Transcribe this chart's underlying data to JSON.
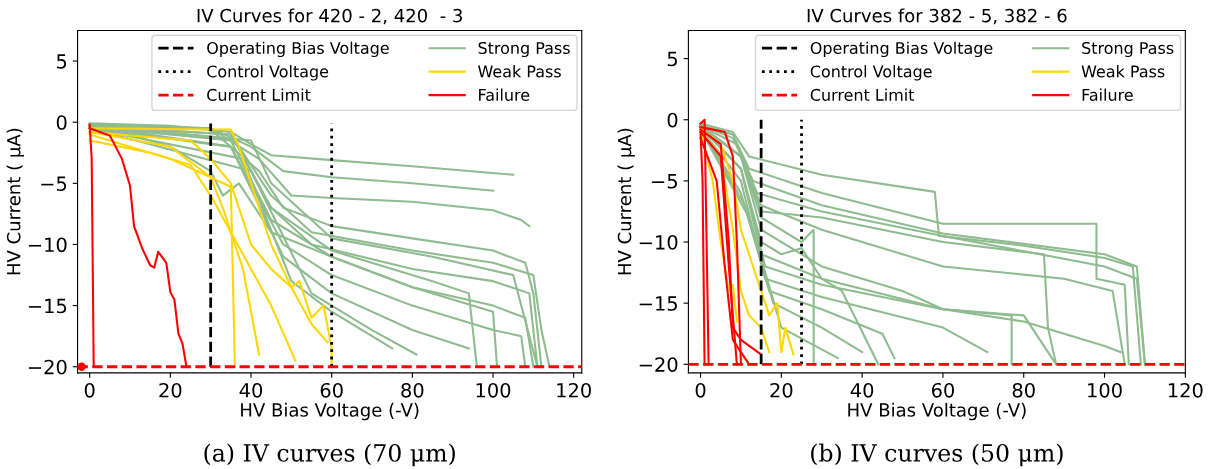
{
  "chart_data": [
    {
      "type": "line",
      "title": "IV Curves for 420 - 2, 420  - 3",
      "xlabel": "HV Bias Voltage (-V)",
      "ylabel": "HV Current ( μA)",
      "xlim": [
        -3,
        122
      ],
      "xticks": [
        0,
        20,
        40,
        60,
        80,
        100,
        120
      ],
      "ylim": [
        -20.5,
        7.5
      ],
      "yticks": [
        -20,
        -15,
        -10,
        -5,
        0,
        5
      ],
      "legend": "top right",
      "grid": false,
      "annotations": [
        "(a) IV curves (70 μm)"
      ],
      "ref_lines": [
        {
          "axis": "x",
          "value": 30,
          "label": "Operating Bias Voltage",
          "color": "#000000",
          "line_style": "dashed"
        },
        {
          "axis": "x",
          "value": 60,
          "label": "Control Voltage",
          "color": "#000000",
          "line_style": "dotted"
        },
        {
          "axis": "y",
          "value": -20,
          "label": "Current Limit",
          "color": "#ff0000",
          "line_style": "dashed"
        }
      ],
      "series": [
        {
          "name": "Strong Pass",
          "color": "#8fbc8f",
          "x": [
            0,
            20,
            35,
            40,
            45,
            60,
            80,
            105
          ],
          "values": [
            -0.1,
            -0.3,
            -0.8,
            -1.8,
            -2.7,
            -3.1,
            -3.6,
            -4.3
          ]
        },
        {
          "color": "#8fbc8f",
          "x": [
            0,
            30,
            40,
            48,
            60,
            80,
            100
          ],
          "values": [
            -0.2,
            -0.5,
            -2,
            -4,
            -4.5,
            -5,
            -5.6
          ]
        },
        {
          "color": "#8fbc8f",
          "x": [
            0,
            30,
            42,
            50,
            60,
            80,
            100,
            107,
            109
          ],
          "values": [
            -0.2,
            -0.5,
            -3,
            -6,
            -6.2,
            -6.5,
            -7.2,
            -8,
            -8.5
          ]
        },
        {
          "color": "#8fbc8f",
          "x": [
            0,
            30,
            42,
            48,
            60,
            80,
            100,
            108,
            110,
            112
          ],
          "values": [
            -0.2,
            -0.6,
            -4,
            -7,
            -8.5,
            -9.5,
            -10.5,
            -11.5,
            -14,
            -20
          ]
        },
        {
          "color": "#8fbc8f",
          "x": [
            0,
            35,
            45,
            55,
            80,
            100,
            110,
            112,
            114
          ],
          "values": [
            -0.3,
            -1,
            -6,
            -9,
            -10.5,
            -11.5,
            -12.5,
            -17,
            -20
          ]
        },
        {
          "color": "#8fbc8f",
          "x": [
            0,
            35,
            45,
            55,
            80,
            100,
            109,
            111
          ],
          "values": [
            -0.3,
            -1,
            -7,
            -10,
            -12,
            -13,
            -14,
            -20
          ]
        },
        {
          "color": "#8fbc8f",
          "x": [
            0,
            35,
            45,
            60,
            80,
            100,
            108,
            110
          ],
          "values": [
            -0.3,
            -1.5,
            -8,
            -11,
            -13.5,
            -15,
            -16,
            -20
          ]
        },
        {
          "color": "#8fbc8f",
          "x": [
            0,
            35,
            48,
            60,
            80,
            100,
            107,
            108
          ],
          "values": [
            -0.3,
            -2,
            -10,
            -12.5,
            -15,
            -17,
            -17.5,
            -20
          ]
        },
        {
          "color": "#8fbc8f",
          "x": [
            0,
            35,
            48,
            60,
            80,
            94
          ],
          "values": [
            -0.5,
            -2,
            -11,
            -14,
            -17,
            -18.5
          ]
        },
        {
          "color": "#8fbc8f",
          "x": [
            0,
            38,
            50,
            60,
            75
          ],
          "values": [
            -0.5,
            -3,
            -13,
            -15.5,
            -18.5
          ]
        },
        {
          "color": "#8fbc8f",
          "x": [
            0,
            40,
            55,
            70,
            81
          ],
          "values": [
            -0.5,
            -4,
            -14,
            -17,
            -19
          ]
        },
        {
          "color": "#8fbc8f",
          "x": [
            0,
            36,
            45,
            60,
            85,
            94,
            96
          ],
          "values": [
            -0.4,
            -1.5,
            -7,
            -10.5,
            -13,
            -14,
            -20
          ]
        },
        {
          "color": "#8fbc8f",
          "x": [
            0,
            10,
            20,
            30,
            33,
            37,
            45,
            60,
            80,
            100,
            101
          ],
          "values": [
            -0.3,
            -1,
            -2,
            -4,
            -6,
            -5,
            -9,
            -11,
            -13.5,
            -15.5,
            -20
          ]
        },
        {
          "color": "#8fbc8f",
          "x": [
            0,
            40,
            45,
            60,
            85,
            105,
            111
          ],
          "values": [
            -0.2,
            -1.5,
            -5,
            -9.5,
            -11,
            -12.5,
            -20
          ]
        },
        {
          "name": "Weak Pass",
          "color": "#ffd700",
          "x": [
            0,
            30,
            35,
            37,
            40,
            45,
            50,
            52,
            55,
            58,
            60,
            60
          ],
          "values": [
            -0.5,
            -0.6,
            -0.6,
            -2,
            -5,
            -10,
            -13.5,
            -13,
            -16,
            -15,
            -18.5,
            -20
          ]
        },
        {
          "color": "#ffd700",
          "x": [
            0,
            20,
            30,
            35,
            36
          ],
          "values": [
            -0.8,
            -2,
            -4.5,
            -5.3,
            -20
          ]
        },
        {
          "color": "#ffd700",
          "x": [
            0,
            10,
            20,
            30,
            33,
            38,
            42
          ],
          "values": [
            -1,
            -2,
            -3,
            -4.5,
            -7,
            -12,
            -19
          ]
        },
        {
          "color": "#ffd700",
          "x": [
            0,
            15,
            25,
            30,
            35,
            40,
            45,
            51
          ],
          "values": [
            -1.5,
            -2.5,
            -3.5,
            -6,
            -9,
            -12,
            -15,
            -19.5
          ]
        },
        {
          "color": "#ffd700",
          "x": [
            0,
            25,
            30,
            35,
            40,
            45,
            50,
            55,
            59
          ],
          "values": [
            -0.8,
            -1.5,
            -3,
            -5,
            -10,
            -12,
            -13.5,
            -16.5,
            -18
          ]
        },
        {
          "name": "Failure",
          "color": "#ff0000",
          "x": [
            0,
            5,
            8,
            10,
            11,
            13,
            15,
            16,
            17,
            19,
            20,
            21,
            22,
            23,
            24
          ],
          "values": [
            -0.5,
            -1.1,
            -3,
            -5.2,
            -8.5,
            -10.3,
            -11.7,
            -11.9,
            -10.6,
            -11.5,
            -13.9,
            -14.5,
            -17.3,
            -18.1,
            -20
          ]
        },
        {
          "color": "#ff0000",
          "x": [
            0,
            0.5,
            1
          ],
          "values": [
            -0.2,
            -3,
            -20
          ]
        },
        {
          "type": "scatter",
          "color": "#ff0000",
          "x": [
            -2
          ],
          "values": [
            -20
          ]
        }
      ]
    },
    {
      "type": "line",
      "title": "IV Curves for 382 - 5, 382 - 6",
      "xlabel": "HV Bias Voltage (-V)",
      "ylabel": "HV Current ( μA)",
      "xlim": [
        -3,
        120
      ],
      "xticks": [
        0,
        20,
        40,
        60,
        80,
        100,
        120
      ],
      "ylim": [
        -20.7,
        7.3
      ],
      "yticks": [
        -20,
        -15,
        -10,
        -5,
        0,
        5
      ],
      "legend": "top right",
      "grid": false,
      "annotations": [
        "(b) IV curves (50 μm)"
      ],
      "ref_lines": [
        {
          "axis": "x",
          "value": 15,
          "label": "Operating Bias Voltage",
          "color": "#000000",
          "line_style": "dashed"
        },
        {
          "axis": "x",
          "value": 25,
          "label": "Control Voltage",
          "color": "#000000",
          "line_style": "dotted"
        },
        {
          "axis": "y",
          "value": -20,
          "label": "Current Limit",
          "color": "#ff0000",
          "line_style": "dashed"
        }
      ],
      "series": [
        {
          "name": "Strong Pass",
          "color": "#8fbc8f",
          "x": [
            0,
            8,
            12,
            30,
            58,
            59,
            80,
            100,
            107,
            109
          ],
          "values": [
            -0.3,
            -1,
            -3,
            -4.5,
            -5.9,
            -9.5,
            -10.3,
            -11.3,
            -12,
            -20
          ]
        },
        {
          "color": "#8fbc8f",
          "x": [
            0,
            8,
            12,
            30,
            60,
            98,
            98,
            105,
            106
          ],
          "values": [
            -0.4,
            -1.2,
            -4,
            -6,
            -8.5,
            -8.5,
            -13,
            -13.5,
            -20
          ]
        },
        {
          "color": "#8fbc8f",
          "x": [
            0,
            8,
            13,
            30,
            60,
            100,
            108,
            110
          ],
          "values": [
            -0.4,
            -1.5,
            -5,
            -7,
            -9.3,
            -11,
            -12,
            -20
          ]
        },
        {
          "color": "#8fbc8f",
          "x": [
            0,
            9,
            14,
            30,
            60,
            100,
            108,
            110
          ],
          "values": [
            -0.5,
            -2,
            -6,
            -7.5,
            -9.5,
            -12,
            -13,
            -20
          ]
        },
        {
          "color": "#8fbc8f",
          "x": [
            0,
            10,
            15,
            30,
            60,
            85,
            86,
            88
          ],
          "values": [
            -0.5,
            -3,
            -7.5,
            -8,
            -10,
            -11,
            -17,
            -20
          ]
        },
        {
          "color": "#8fbc8f",
          "x": [
            0,
            10,
            15,
            30,
            60,
            80,
            100,
            104
          ],
          "values": [
            -0.6,
            -4,
            -11,
            -13,
            -15.5,
            -16.5,
            -18.5,
            -19
          ]
        },
        {
          "color": "#8fbc8f",
          "x": [
            0,
            10,
            16,
            30,
            60,
            77,
            77
          ],
          "values": [
            -0.6,
            -4,
            -12,
            -13.5,
            -15.5,
            -16,
            -20
          ]
        },
        {
          "color": "#8fbc8f",
          "x": [
            0,
            10,
            16,
            30,
            60,
            71
          ],
          "values": [
            -0.7,
            -5,
            -13,
            -14.5,
            -17,
            -19
          ]
        },
        {
          "color": "#8fbc8f",
          "x": [
            0,
            10,
            17,
            30,
            45,
            48
          ],
          "values": [
            -0.7,
            -6,
            -14,
            -15.5,
            -17.5,
            -19.5
          ]
        },
        {
          "color": "#8fbc8f",
          "x": [
            0,
            11,
            18,
            30,
            40
          ],
          "values": [
            -0.8,
            -7,
            -15,
            -17,
            -19
          ]
        },
        {
          "color": "#8fbc8f",
          "x": [
            0,
            12,
            20,
            34
          ],
          "values": [
            -0.8,
            -8,
            -17,
            -19.5
          ]
        },
        {
          "color": "#8fbc8f",
          "x": [
            0,
            10,
            15,
            25,
            28,
            28
          ],
          "values": [
            -0.5,
            -3,
            -8,
            -10,
            -9,
            -20
          ]
        },
        {
          "color": "#8fbc8f",
          "x": [
            0,
            10,
            15,
            20,
            25,
            30,
            35,
            44
          ],
          "values": [
            -0.6,
            -4,
            -10,
            -11,
            -10.5,
            -13,
            -14,
            -20
          ]
        },
        {
          "color": "#8fbc8f",
          "x": [
            0,
            10,
            15,
            30,
            50,
            60,
            80,
            88
          ],
          "values": [
            -0.5,
            -3,
            -9,
            -12,
            -14,
            -15.5,
            -16,
            -20
          ]
        },
        {
          "color": "#8fbc8f",
          "x": [
            0,
            10,
            15,
            30,
            60,
            90,
            102,
            105
          ],
          "values": [
            -0.5,
            -3,
            -7,
            -9,
            -12,
            -13,
            -14,
            -20
          ]
        },
        {
          "name": "Weak Pass",
          "color": "#ffd700",
          "x": [
            0,
            3,
            5,
            6,
            7,
            8,
            9
          ],
          "values": [
            -0.8,
            -5,
            -10,
            -12,
            -14,
            -13.5,
            -16.5
          ]
        },
        {
          "color": "#ffd700",
          "x": [
            0,
            5,
            8,
            10,
            13,
            15,
            17,
            19,
            20,
            21,
            23
          ],
          "values": [
            -0.7,
            -2,
            -5,
            -9,
            -12,
            -14,
            -16,
            -15,
            -19,
            -17,
            -19.2
          ]
        },
        {
          "color": "#ffd700",
          "x": [
            0,
            5,
            8,
            10,
            12,
            15,
            17
          ],
          "values": [
            -0.9,
            -3,
            -9,
            -14,
            -16,
            -17,
            -19
          ]
        },
        {
          "name": "Failure",
          "color": "#ff0000",
          "x": [
            0,
            1,
            1.5,
            2
          ],
          "values": [
            -0.3,
            0,
            -10,
            -20
          ]
        },
        {
          "color": "#ff0000",
          "x": [
            0,
            0.5,
            1
          ],
          "values": [
            -1,
            -5,
            -20
          ]
        },
        {
          "color": "#ff0000",
          "x": [
            0,
            5,
            7,
            8,
            10,
            15
          ],
          "values": [
            -0.8,
            -2,
            -10,
            -17,
            -18,
            -19.2
          ]
        },
        {
          "color": "#ff0000",
          "x": [
            0,
            5,
            7,
            9
          ],
          "values": [
            -1,
            -3,
            -12,
            -20
          ]
        },
        {
          "color": "#ff0000",
          "x": [
            0,
            6,
            8,
            9,
            10
          ],
          "values": [
            -0.6,
            -1,
            -3,
            -10,
            -20
          ]
        },
        {
          "color": "#ff0000",
          "x": [
            0,
            4,
            6,
            8,
            12
          ],
          "values": [
            -1.5,
            -5,
            -12,
            -18,
            -20
          ]
        }
      ]
    }
  ]
}
